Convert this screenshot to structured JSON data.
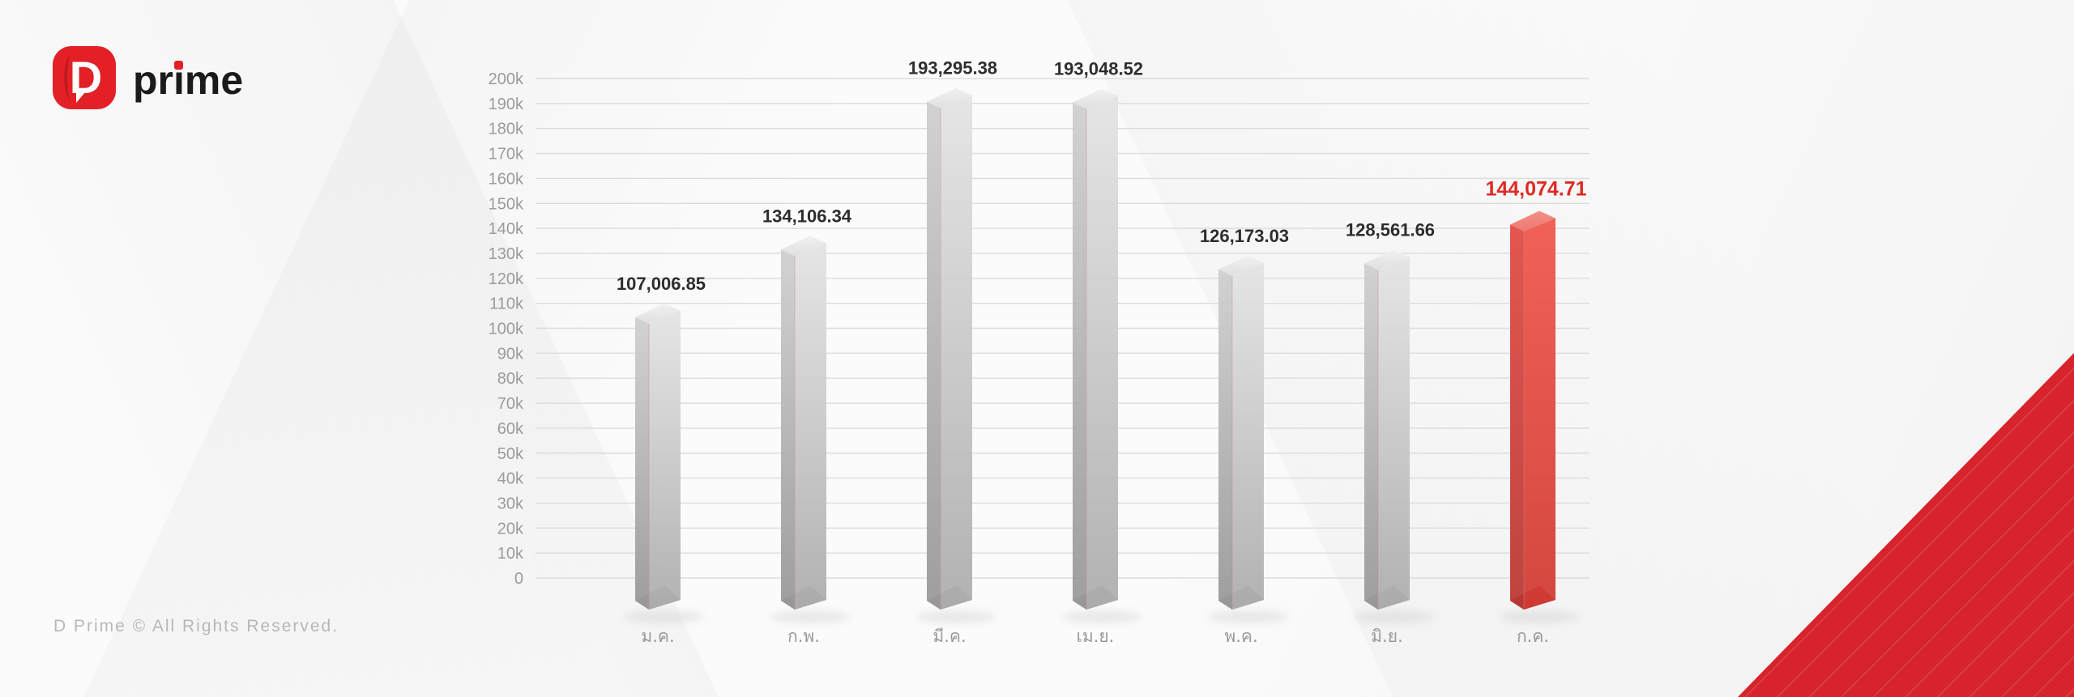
{
  "logo": {
    "mark_letter": "D",
    "text": "prime",
    "mark_color": "#e22026"
  },
  "footer": {
    "copyright": "D Prime © All Rights Reserved."
  },
  "colors": {
    "accent_red": "#e22026",
    "corner_red": "#d7232b",
    "bar_gray": "#c4c4c4",
    "bar_highlight_red": "#e1493f",
    "value_label": "#2d2d2d",
    "highlight_value_label": "#de2a25",
    "axis_label": "#9b9b9b",
    "gridline": "#dcdcdc"
  },
  "chart_data": {
    "type": "bar",
    "title": "",
    "xlabel": "",
    "ylabel": "",
    "grid": true,
    "legend": false,
    "categories": [
      "ม.ค.",
      "ก.พ.",
      "มี.ค.",
      "เม.ย.",
      "พ.ค.",
      "มิ.ย.",
      "ก.ค."
    ],
    "values": [
      107006.85,
      134106.34,
      193295.38,
      193048.52,
      126173.03,
      128561.66,
      144074.71
    ],
    "value_labels": [
      "107,006.85",
      "134,106.34",
      "193,295.38",
      "193,048.52",
      "126,173.03",
      "128,561.66",
      "144,074.71"
    ],
    "highlight_index": 6,
    "ylim": [
      0,
      200000
    ],
    "ytick_step": 10000,
    "ytick_labels": [
      "0",
      "10k",
      "20k",
      "30k",
      "40k",
      "50k",
      "60k",
      "70k",
      "80k",
      "90k",
      "100k",
      "110k",
      "120k",
      "130k",
      "140k",
      "150k",
      "160k",
      "170k",
      "180k",
      "190k",
      "200k"
    ]
  }
}
